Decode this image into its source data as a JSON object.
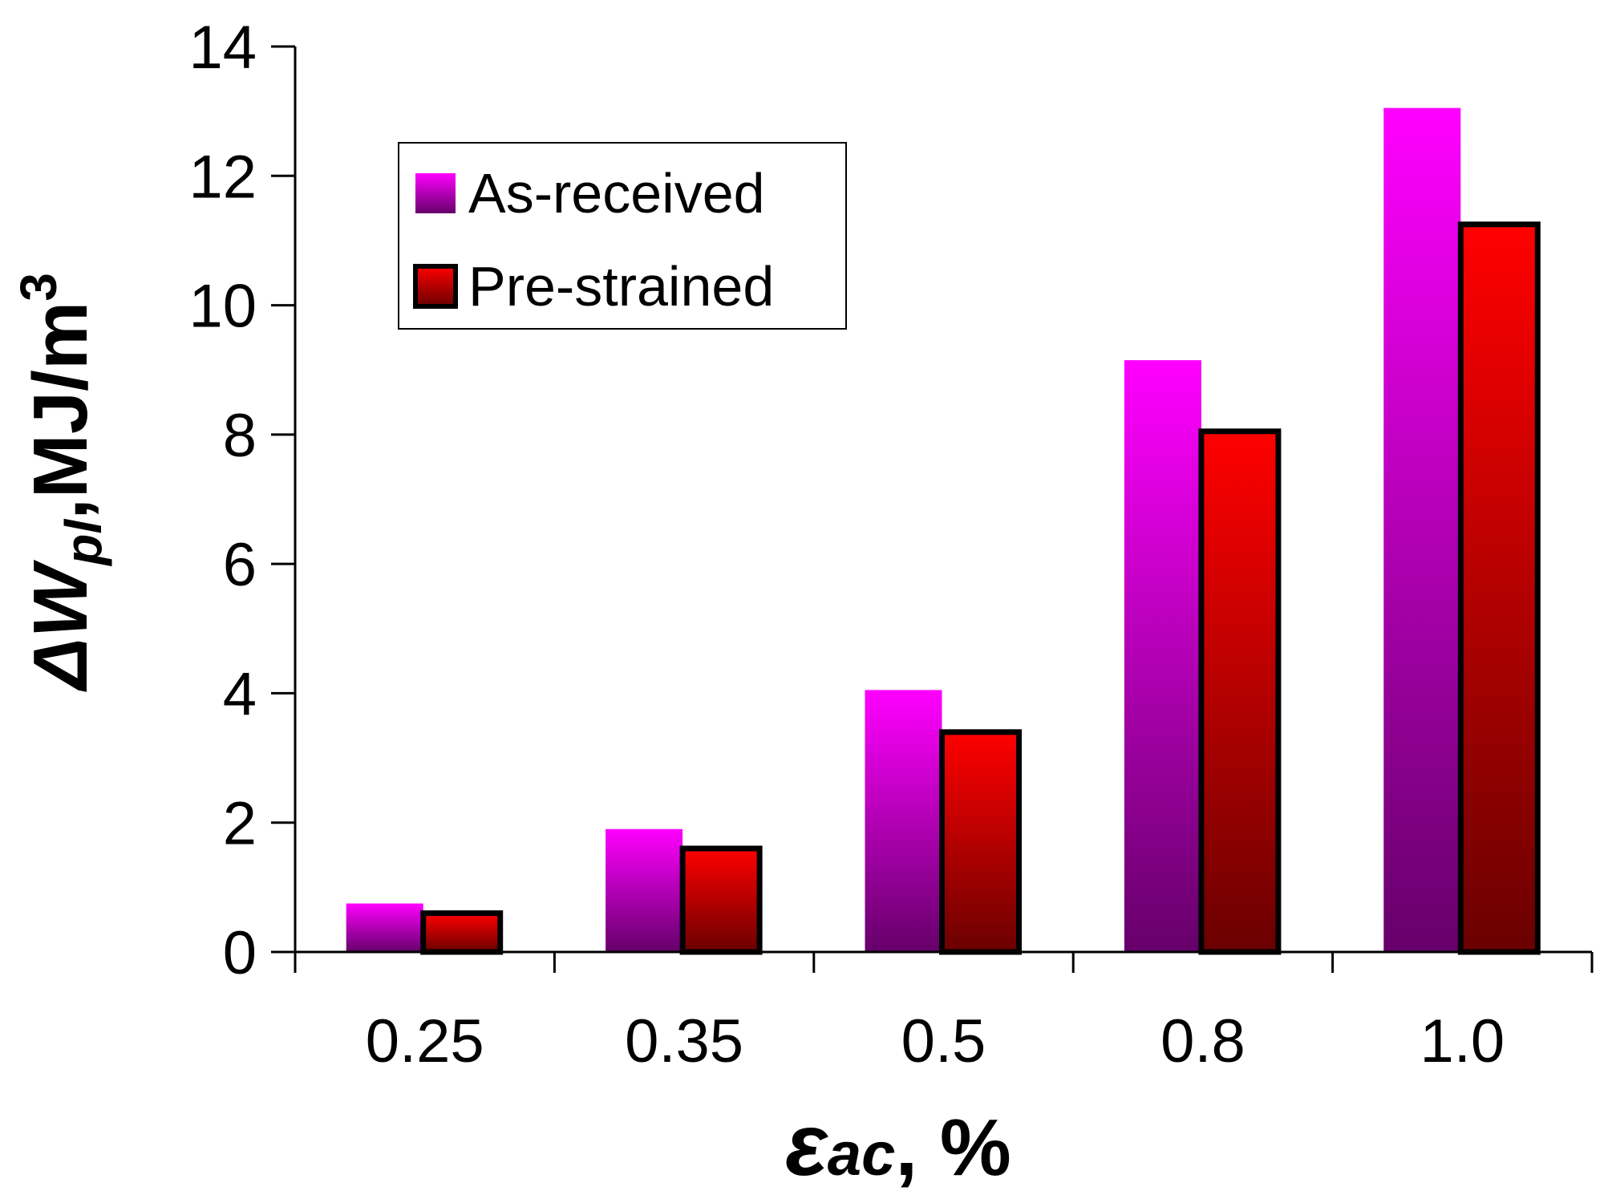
{
  "chart_data": {
    "type": "bar",
    "categories": [
      "0.25",
      "0.35",
      "0.5",
      "0.8",
      "1.0"
    ],
    "series": [
      {
        "name": "As-received",
        "values": [
          0.75,
          1.9,
          4.05,
          9.15,
          13.05
        ],
        "color": "#ff00ff",
        "color_dark": "#66006a"
      },
      {
        "name": "Pre-strained",
        "values": [
          0.6,
          1.6,
          3.4,
          8.05,
          11.25
        ],
        "color": "#ff0000",
        "color_dark": "#6a0000"
      }
    ],
    "ylim": [
      0,
      14
    ],
    "yticks": [
      0,
      2,
      4,
      6,
      8,
      10,
      12,
      14
    ],
    "xlabel": {
      "symbol": "ε",
      "subscript": "ac",
      "suffix": ", %"
    },
    "ylabel": {
      "symbol": "ΔW",
      "subscript": "pl",
      "suffix": ",MJ/m",
      "superscript": "3"
    },
    "legend_position": "top-left",
    "grid": false
  }
}
